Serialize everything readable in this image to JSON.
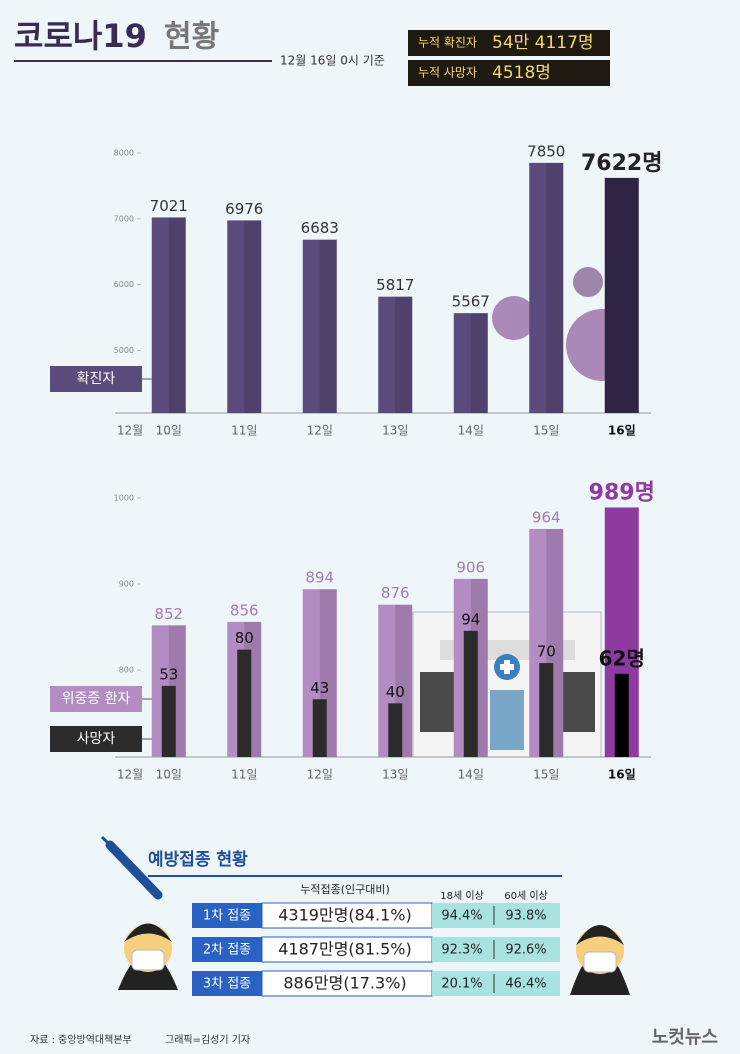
{
  "header": {
    "title_main": "코로나19",
    "title_sub": "현황",
    "date": "12월 16일 0시 기준",
    "boxes": [
      {
        "label": "누적 확진자",
        "value": "54만 4117명"
      },
      {
        "label": "누적 사망자",
        "value": "4518명"
      }
    ]
  },
  "chart_data": [
    {
      "type": "bar",
      "x_label": "12월",
      "categories": [
        "10일",
        "11일",
        "12일",
        "13일",
        "14일",
        "15일",
        "16일"
      ],
      "series": [
        {
          "name": "확진자",
          "color": "#5b4a7c",
          "highlight_color": "#2f2443",
          "values": [
            7021,
            6976,
            6683,
            5817,
            5567,
            7850,
            7622
          ],
          "value_labels": [
            "7021",
            "6976",
            "6683",
            "5817",
            "5567",
            "7850",
            "7622명"
          ]
        }
      ],
      "ylim": [
        4050,
        8000
      ],
      "yticks": [
        5000,
        6000,
        7000,
        8000
      ]
    },
    {
      "type": "bar",
      "x_label": "12월",
      "categories": [
        "10일",
        "11일",
        "12일",
        "13일",
        "14일",
        "15일",
        "16일"
      ],
      "series": [
        {
          "name": "위중증 환자",
          "color": "#b48cc4",
          "highlight_color": "#8e3aa0",
          "values": [
            852,
            856,
            894,
            876,
            906,
            964,
            989
          ],
          "value_labels": [
            "852",
            "856",
            "894",
            "876",
            "906",
            "964",
            "989명"
          ]
        },
        {
          "name": "사망자",
          "color": "#2b2b2b",
          "highlight_color": "#000000",
          "axis": "y2",
          "values": [
            53,
            80,
            43,
            40,
            94,
            70,
            62
          ],
          "value_labels": [
            "53",
            "80",
            "43",
            "40",
            "94",
            "70",
            "62명"
          ]
        }
      ],
      "ylim": [
        699,
        1000
      ],
      "yticks": [
        800,
        900,
        1000
      ],
      "y2lim": [
        0,
        193
      ]
    }
  ],
  "vaccination": {
    "title": "예방접종 현황",
    "header": [
      "누적접종(인구대비)",
      "18세 이상",
      "60세 이상"
    ],
    "rows": [
      [
        "1차 접종",
        "4319만명(84.1%)",
        "94.4%",
        "93.8%"
      ],
      [
        "2차 접종",
        "4187만명(81.5%)",
        "92.3%",
        "92.6%"
      ],
      [
        "3차 접종",
        "886만명(17.3%)",
        "20.1%",
        "46.4%"
      ]
    ]
  },
  "footer": {
    "source": "자료 : 중앙방역대책본부",
    "credit": "그래픽=김성기 기자",
    "logo": "노컷뉴스"
  }
}
